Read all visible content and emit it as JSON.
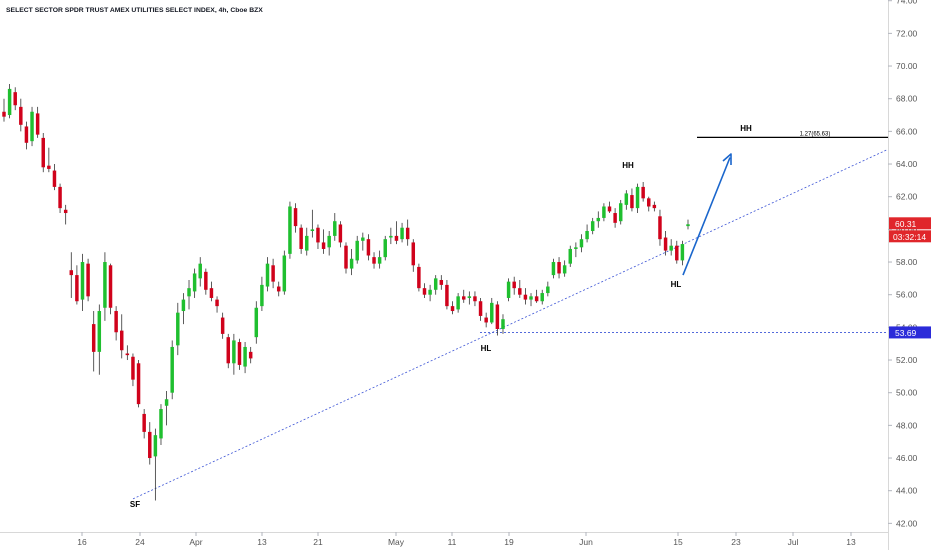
{
  "header": {
    "title": "SELECT SECTOR SPDR TRUST AMEX UTILITIES SELECT INDEX, 4h, Cboe BZX"
  },
  "price_axis": {
    "ticks": [
      "74.00",
      "72.00",
      "70.00",
      "68.00",
      "66.00",
      "64.00",
      "62.00",
      "60.00",
      "58.00",
      "56.00",
      "54.00",
      "52.00",
      "50.00",
      "48.00",
      "46.00",
      "44.00",
      "42.00"
    ],
    "last_price_label": "60.31",
    "countdown_label": "03:32:14",
    "level_label": "53.69"
  },
  "time_axis": {
    "ticks": [
      "16",
      "24",
      "Apr",
      "13",
      "21",
      "May",
      "11",
      "19",
      "Jun",
      "15",
      "23",
      "Jul",
      "13"
    ]
  },
  "annotations": {
    "sf": "SF",
    "hl1": "HL",
    "hh1": "HH",
    "hl2": "HL",
    "hh2": "HH",
    "fib": "1.27(65.63)"
  },
  "colors": {
    "up": "#1fbf2f",
    "down": "#d0021b",
    "trendline": "#3d55d6",
    "arrow": "#1a66cc",
    "price_badge": "#e0262b",
    "level_badge": "#2b2bd9"
  },
  "chart_data": {
    "type": "candlestick",
    "title": "SELECT SECTOR SPDR TRUST AMEX UTILITIES SELECT INDEX, 4h, Cboe BZX",
    "ylim": [
      41.5,
      74.5
    ],
    "y_ticks": [
      42,
      44,
      46,
      48,
      50,
      52,
      54,
      56,
      58,
      60,
      62,
      64,
      66,
      68,
      70,
      72,
      74
    ],
    "last_price": 60.31,
    "horizontal_level": 53.69,
    "fib_level": {
      "label": "1.27(65.63)",
      "value": 65.63
    },
    "ohlc": [
      [
        67.2,
        68.0,
        66.6,
        66.9
      ],
      [
        67.0,
        68.9,
        66.8,
        68.6
      ],
      [
        68.4,
        68.7,
        67.3,
        67.6
      ],
      [
        67.5,
        68.0,
        66.0,
        66.4
      ],
      [
        66.3,
        66.6,
        64.9,
        65.3
      ],
      [
        65.4,
        67.5,
        65.1,
        67.2
      ],
      [
        67.1,
        67.5,
        65.6,
        65.8
      ],
      [
        65.6,
        65.9,
        63.5,
        63.8
      ],
      [
        63.9,
        65.0,
        63.5,
        63.7
      ],
      [
        63.6,
        64.0,
        62.4,
        62.6
      ],
      [
        62.6,
        62.8,
        61.0,
        61.3
      ],
      [
        61.2,
        61.5,
        60.3,
        61.0
      ],
      [
        57.5,
        58.6,
        55.8,
        57.2
      ],
      [
        57.2,
        57.8,
        55.4,
        55.6
      ],
      [
        55.7,
        58.5,
        55.0,
        58.0
      ],
      [
        57.9,
        58.2,
        55.6,
        55.9
      ],
      [
        54.2,
        55.0,
        51.3,
        52.5
      ],
      [
        52.5,
        55.4,
        51.1,
        55.0
      ],
      [
        55.2,
        58.6,
        54.4,
        58.0
      ],
      [
        57.8,
        57.9,
        54.8,
        55.2
      ],
      [
        55.0,
        55.3,
        53.2,
        53.7
      ],
      [
        53.8,
        54.8,
        52.1,
        52.6
      ],
      [
        52.4,
        52.9,
        52.0,
        52.3
      ],
      [
        52.2,
        52.4,
        50.4,
        50.8
      ],
      [
        51.8,
        52.0,
        49.1,
        49.3
      ],
      [
        48.7,
        49.0,
        47.2,
        47.6
      ],
      [
        47.6,
        48.2,
        45.6,
        46.0
      ],
      [
        46.1,
        47.8,
        43.4,
        47.4
      ],
      [
        47.2,
        49.3,
        46.8,
        49.0
      ],
      [
        49.2,
        50.1,
        48.0,
        49.6
      ],
      [
        50.0,
        53.2,
        49.6,
        52.8
      ],
      [
        52.9,
        55.5,
        52.3,
        54.9
      ],
      [
        55.0,
        56.1,
        54.2,
        55.7
      ],
      [
        55.9,
        56.9,
        55.1,
        56.4
      ],
      [
        56.2,
        57.6,
        55.8,
        57.3
      ],
      [
        57.0,
        58.3,
        56.5,
        57.9
      ],
      [
        57.4,
        57.6,
        56.0,
        56.3
      ],
      [
        56.4,
        56.8,
        55.6,
        55.8
      ],
      [
        55.7,
        55.9,
        54.9,
        55.3
      ],
      [
        54.6,
        54.9,
        53.3,
        53.6
      ],
      [
        53.4,
        53.6,
        51.5,
        51.8
      ],
      [
        51.8,
        53.6,
        51.1,
        53.2
      ],
      [
        53.1,
        53.3,
        51.4,
        51.7
      ],
      [
        51.6,
        53.1,
        51.2,
        52.8
      ],
      [
        52.5,
        52.8,
        51.8,
        52.1
      ],
      [
        53.4,
        55.6,
        53.0,
        55.2
      ],
      [
        55.3,
        57.1,
        55.0,
        56.6
      ],
      [
        56.5,
        58.3,
        56.2,
        57.9
      ],
      [
        57.8,
        58.2,
        56.4,
        56.8
      ],
      [
        56.5,
        56.8,
        55.9,
        56.2
      ],
      [
        56.2,
        58.7,
        56.0,
        58.4
      ],
      [
        58.5,
        61.7,
        58.2,
        61.4
      ],
      [
        61.3,
        61.6,
        59.8,
        60.2
      ],
      [
        60.1,
        60.3,
        58.5,
        58.8
      ],
      [
        58.7,
        60.1,
        58.4,
        59.6
      ],
      [
        59.9,
        61.2,
        59.5,
        60.0
      ],
      [
        60.1,
        60.3,
        58.8,
        59.2
      ],
      [
        59.2,
        60.0,
        58.5,
        58.8
      ],
      [
        58.9,
        59.9,
        58.4,
        59.6
      ],
      [
        59.6,
        61.0,
        59.3,
        60.5
      ],
      [
        60.3,
        60.5,
        58.9,
        59.2
      ],
      [
        59.0,
        59.2,
        57.3,
        57.6
      ],
      [
        57.6,
        58.8,
        57.2,
        58.2
      ],
      [
        58.1,
        59.6,
        57.9,
        59.3
      ],
      [
        59.3,
        59.8,
        58.7,
        59.5
      ],
      [
        59.4,
        59.7,
        58.1,
        58.4
      ],
      [
        58.3,
        58.6,
        57.6,
        57.9
      ],
      [
        57.9,
        58.7,
        57.6,
        58.3
      ],
      [
        58.3,
        59.6,
        58.1,
        59.4
      ],
      [
        59.5,
        60.1,
        59.1,
        59.6
      ],
      [
        59.6,
        60.5,
        59.1,
        59.3
      ],
      [
        59.4,
        60.4,
        59.2,
        60.1
      ],
      [
        60.1,
        60.6,
        59.0,
        59.4
      ],
      [
        59.2,
        59.4,
        57.4,
        57.8
      ],
      [
        57.7,
        57.9,
        56.2,
        56.4
      ],
      [
        56.4,
        56.7,
        55.8,
        56.0
      ],
      [
        56.0,
        56.6,
        55.6,
        56.3
      ],
      [
        56.3,
        57.2,
        56.0,
        57.0
      ],
      [
        56.9,
        57.2,
        56.3,
        56.6
      ],
      [
        56.6,
        56.9,
        55.1,
        55.3
      ],
      [
        55.3,
        55.6,
        54.8,
        55.0
      ],
      [
        55.1,
        56.1,
        54.9,
        55.9
      ],
      [
        55.9,
        56.3,
        55.5,
        55.7
      ],
      [
        55.8,
        56.2,
        55.4,
        55.9
      ],
      [
        55.9,
        56.2,
        55.3,
        55.6
      ],
      [
        55.6,
        55.8,
        54.4,
        54.7
      ],
      [
        54.6,
        54.9,
        54.0,
        54.3
      ],
      [
        54.3,
        55.8,
        54.2,
        55.5
      ],
      [
        55.4,
        55.6,
        53.5,
        53.9
      ],
      [
        53.9,
        54.8,
        53.6,
        54.5
      ],
      [
        55.8,
        57.0,
        55.6,
        56.8
      ],
      [
        56.8,
        57.1,
        56.0,
        56.4
      ],
      [
        56.4,
        56.9,
        55.8,
        56.0
      ],
      [
        56.0,
        56.4,
        55.4,
        55.7
      ],
      [
        55.7,
        56.1,
        55.3,
        55.9
      ],
      [
        55.9,
        56.3,
        55.5,
        55.6
      ],
      [
        55.6,
        56.3,
        55.4,
        56.1
      ],
      [
        56.1,
        56.8,
        55.9,
        56.5
      ],
      [
        57.2,
        58.2,
        57.0,
        58.0
      ],
      [
        58.0,
        58.3,
        57.0,
        57.3
      ],
      [
        57.3,
        58.1,
        57.1,
        57.8
      ],
      [
        57.9,
        59.0,
        57.7,
        58.8
      ],
      [
        58.8,
        59.2,
        58.3,
        58.9
      ],
      [
        58.9,
        59.7,
        58.6,
        59.4
      ],
      [
        59.4,
        60.3,
        59.2,
        59.9
      ],
      [
        59.9,
        60.7,
        59.7,
        60.5
      ],
      [
        60.5,
        61.1,
        60.1,
        60.7
      ],
      [
        60.7,
        61.6,
        60.5,
        61.4
      ],
      [
        61.4,
        61.7,
        61.0,
        61.1
      ],
      [
        61.0,
        61.3,
        60.1,
        60.4
      ],
      [
        60.5,
        61.8,
        60.3,
        61.6
      ],
      [
        61.5,
        62.4,
        61.2,
        62.2
      ],
      [
        62.1,
        62.5,
        61.1,
        61.3
      ],
      [
        61.3,
        62.8,
        61.0,
        62.6
      ],
      [
        62.6,
        62.9,
        61.7,
        61.9
      ],
      [
        61.9,
        62.0,
        61.1,
        61.4
      ],
      [
        61.5,
        61.7,
        61.1,
        61.3
      ],
      [
        60.8,
        61.2,
        59.0,
        59.4
      ],
      [
        59.5,
        59.9,
        58.4,
        58.7
      ],
      [
        58.7,
        59.4,
        58.4,
        59.0
      ],
      [
        59.0,
        59.3,
        57.9,
        58.1
      ],
      [
        58.1,
        59.3,
        57.8,
        59.1
      ],
      [
        60.2,
        60.6,
        60.0,
        60.31
      ]
    ]
  }
}
